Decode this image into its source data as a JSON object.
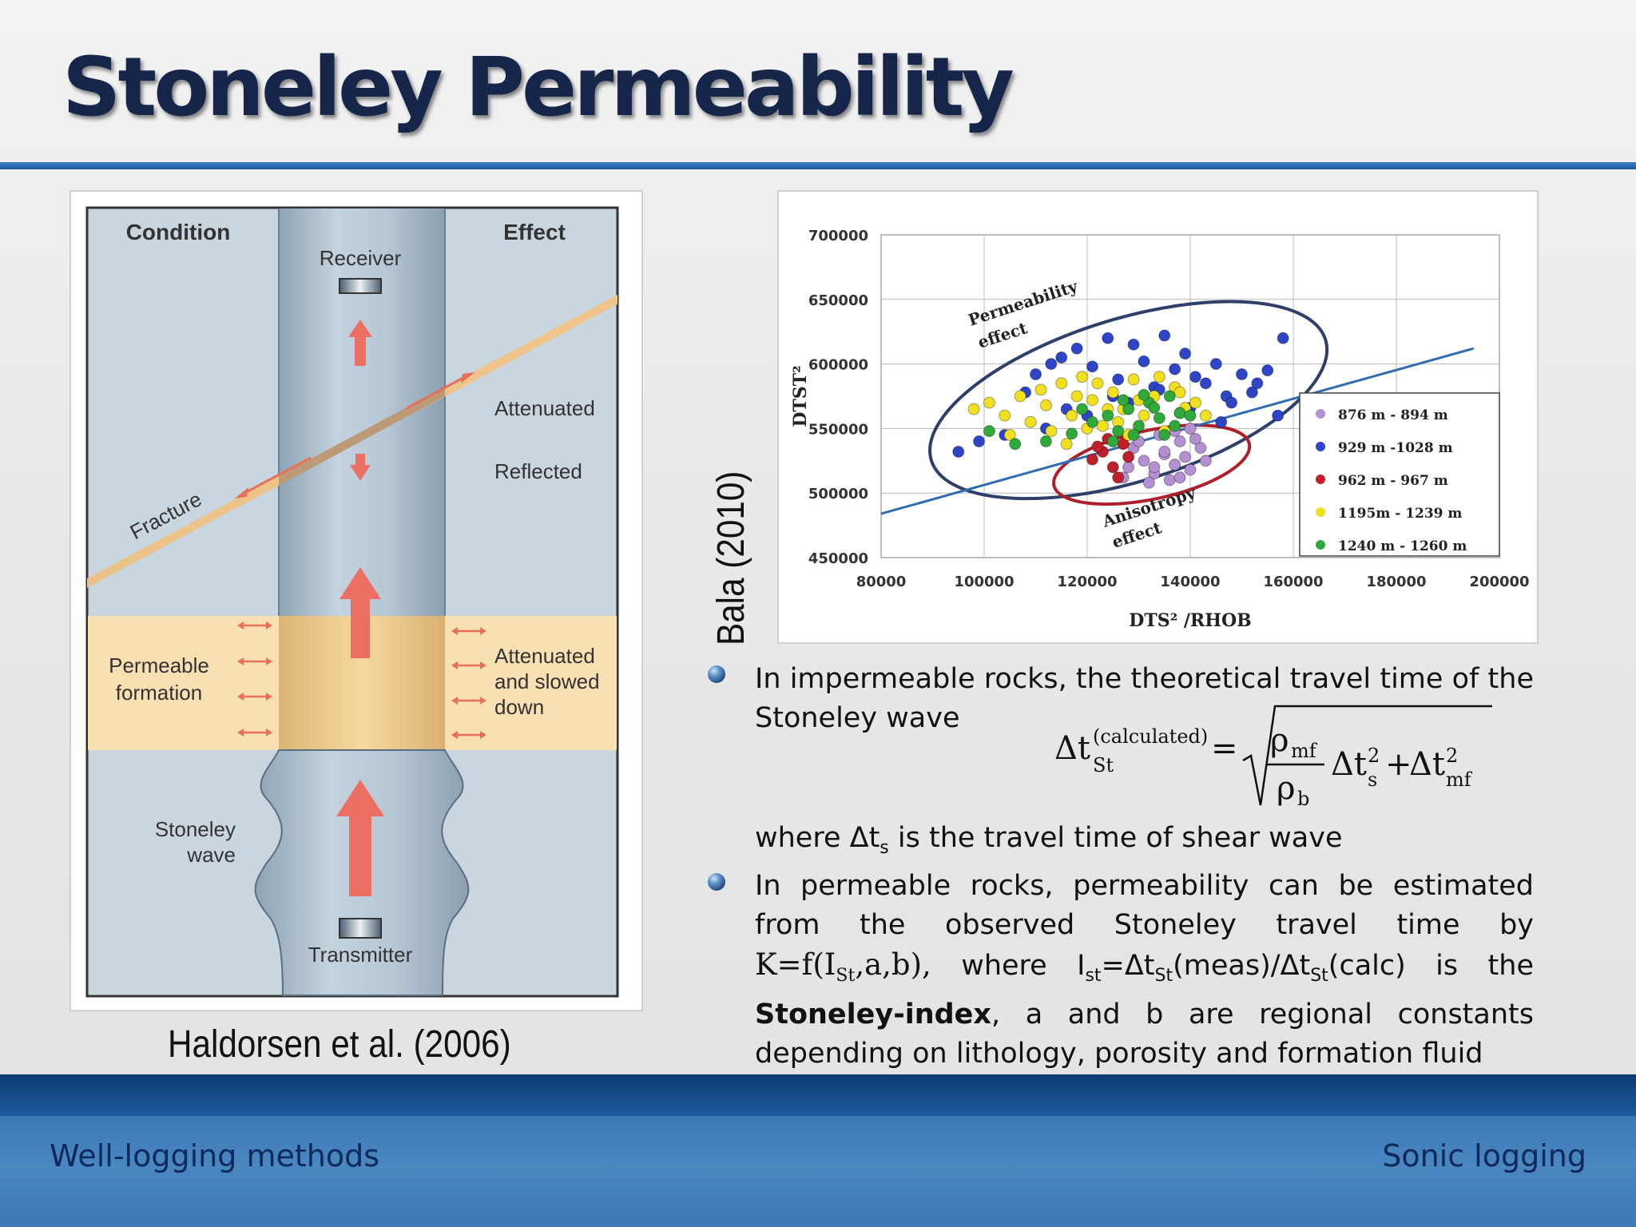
{
  "slide": {
    "title": "Stoneley Permeability",
    "footer_left": "Well-logging methods",
    "footer_right": "Sonic logging"
  },
  "diagram": {
    "caption": "Haldorsen et al. (2006)",
    "condition_header": "Condition",
    "effect_header": "Effect",
    "receiver": "Receiver",
    "transmitter": "Transmitter",
    "fracture": "Fracture",
    "attenuated": "Attenuated",
    "reflected": "Reflected",
    "permeable_line1": "Permeable",
    "permeable_line2": "formation",
    "slowed_line1": "Attenuated",
    "slowed_line2": "and slowed",
    "slowed_line3": "down",
    "stoneley_line1": "Stoneley",
    "stoneley_line2": "wave"
  },
  "chart_caption": "Bala (2010)",
  "chart_data": {
    "type": "scatter",
    "xlabel": "DTS² /RHOB",
    "ylabel": "DTST²",
    "xlim": [
      80000,
      200000
    ],
    "ylim": [
      450000,
      700000
    ],
    "x_ticks": [
      80000,
      100000,
      120000,
      140000,
      160000,
      180000,
      200000
    ],
    "x_tick_labels": [
      "80000",
      "100000",
      "120000",
      "140000",
      "160000",
      "180000",
      "200000"
    ],
    "y_ticks": [
      450000,
      500000,
      550000,
      600000,
      650000,
      700000
    ],
    "y_tick_labels": [
      "450000",
      "500000",
      "550000",
      "600000",
      "650000",
      "700000"
    ],
    "grid": true,
    "legend_position": "right",
    "series": [
      {
        "name": "876 m - 894 m",
        "color": "#b48fd1",
        "x": [
          128000,
          131000,
          133000,
          135000,
          137000,
          138000,
          140000,
          142000,
          134000,
          136000,
          139000,
          141000,
          129000,
          132000,
          137000,
          143000,
          130000,
          135000,
          138000,
          140000,
          133000,
          127000
        ],
        "y": [
          520000,
          525000,
          515000,
          530000,
          522000,
          540000,
          518000,
          535000,
          545000,
          510000,
          528000,
          542000,
          535000,
          508000,
          548000,
          525000,
          540000,
          532000,
          512000,
          550000,
          520000,
          512000
        ]
      },
      {
        "name": "929 m -1028 m",
        "color": "#2f45c7",
        "x": [
          95000,
          99000,
          104000,
          108000,
          110000,
          113000,
          115000,
          118000,
          121000,
          124000,
          126000,
          129000,
          131000,
          133000,
          135000,
          137000,
          139000,
          141000,
          143000,
          145000,
          147000,
          150000,
          152000,
          155000,
          158000,
          116000,
          120000,
          128000,
          134000,
          140000,
          146000,
          153000,
          157000,
          112000,
          125000,
          138000,
          148000
        ],
        "y": [
          532000,
          540000,
          545000,
          578000,
          592000,
          600000,
          605000,
          612000,
          598000,
          620000,
          588000,
          615000,
          602000,
          582000,
          622000,
          596000,
          608000,
          590000,
          585000,
          600000,
          575000,
          592000,
          578000,
          595000,
          620000,
          565000,
          560000,
          570000,
          580000,
          566000,
          555000,
          585000,
          560000,
          550000,
          575000,
          562000,
          570000
        ]
      },
      {
        "name": "962 m - 967 m",
        "color": "#c0202a",
        "x": [
          121000,
          123000,
          125000,
          127000,
          124000,
          126000,
          122000,
          128000
        ],
        "y": [
          526000,
          532000,
          520000,
          538000,
          542000,
          512000,
          536000,
          528000
        ]
      },
      {
        "name": "1195m - 1239 m",
        "color": "#f0e020",
        "x": [
          98000,
          101000,
          104000,
          107000,
          109000,
          111000,
          113000,
          115000,
          117000,
          119000,
          121000,
          123000,
          125000,
          127000,
          129000,
          131000,
          133000,
          135000,
          137000,
          139000,
          141000,
          143000,
          105000,
          112000,
          118000,
          122000,
          126000,
          130000,
          134000,
          138000,
          116000,
          120000,
          124000,
          128000
        ],
        "y": [
          565000,
          570000,
          560000,
          575000,
          555000,
          580000,
          548000,
          585000,
          560000,
          590000,
          572000,
          552000,
          578000,
          565000,
          588000,
          560000,
          575000,
          548000,
          582000,
          566000,
          570000,
          560000,
          545000,
          568000,
          575000,
          585000,
          555000,
          572000,
          590000,
          578000,
          538000,
          550000,
          565000,
          545000
        ]
      },
      {
        "name": "1240 m - 1260 m",
        "color": "#2faa3a",
        "x": [
          101000,
          106000,
          112000,
          117000,
          121000,
          124000,
          126000,
          128000,
          130000,
          132000,
          134000,
          136000,
          138000,
          140000,
          125000,
          129000,
          133000,
          137000,
          119000,
          131000,
          135000,
          127000
        ],
        "y": [
          548000,
          538000,
          540000,
          546000,
          555000,
          560000,
          548000,
          565000,
          552000,
          570000,
          558000,
          575000,
          562000,
          560000,
          540000,
          545000,
          566000,
          552000,
          565000,
          576000,
          545000,
          572000
        ]
      }
    ],
    "trend_line": {
      "x": [
        80000,
        195000
      ],
      "y": [
        484000,
        612000
      ]
    },
    "annotations": {
      "permeability": [
        "Permeability",
        "effect"
      ],
      "anisotropy": [
        "Anisotropy",
        "effect"
      ]
    }
  },
  "text": {
    "bullet1": "In impermeable rocks, the theoretical travel time of the Stoneley wave",
    "formula": {
      "lhs": "Δt",
      "lhs_sub": "St",
      "lhs_sup": "(calculated)",
      "eq": "=",
      "num": "ρ",
      "num_sub": "mf",
      "den": "ρ",
      "den_sub": "b",
      "term1": "Δt",
      "term1_sub": "s",
      "term1_sup": "2",
      "plus": "+",
      "term2": "Δt",
      "term2_sub": "mf",
      "term2_sup": "2"
    },
    "where_pre": "where Δt",
    "where_sub": "s",
    "where_post": " is the travel time of shear wave",
    "b2_p1": "In permeable rocks, permeability can be estimated from the observed Stoneley travel time by ",
    "b2_kf": "K=f(I",
    "b2_kf_sub": "St",
    "b2_kf_post": ",a,b),",
    "b2_where": " where I",
    "b2_ist_sub": "st",
    "b2_eq": "=Δt",
    "b2_dt1_sub": "St",
    "b2_meas": "(meas)/Δt",
    "b2_dt2_sub": "St",
    "b2_calc": "(calc) is the ",
    "b2_bold": "Stoneley-index",
    "b2_end": ", a and b are regional constants depending on lithology, porosity and formation fluid"
  }
}
